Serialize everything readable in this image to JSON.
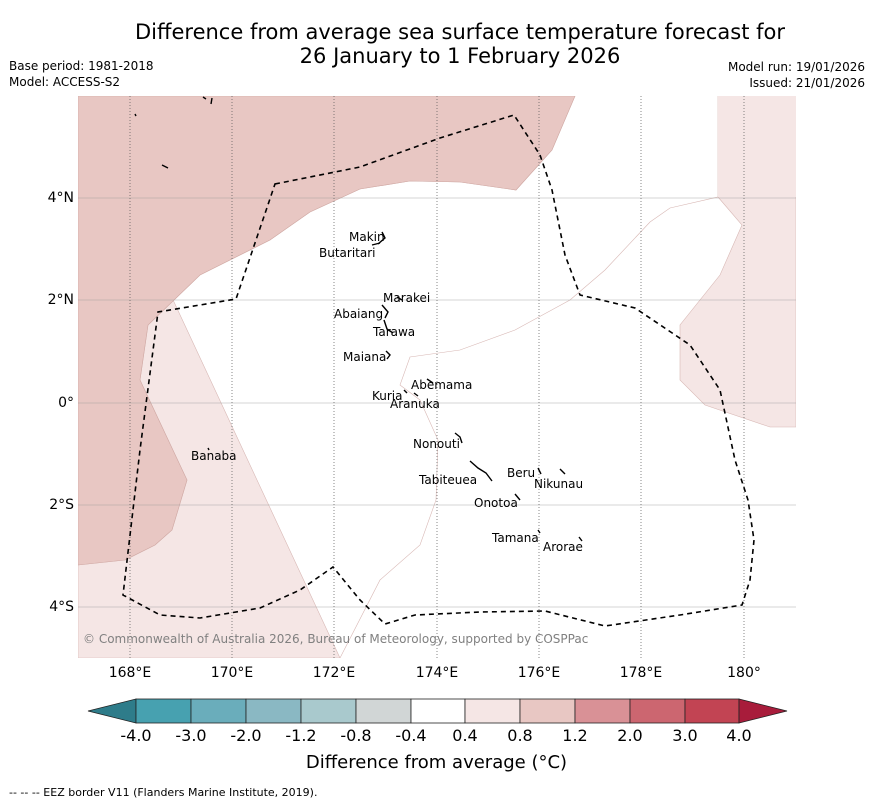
{
  "title": {
    "line1": "Difference from average sea surface temperature forecast for",
    "line2": "26 January to 1 February 2026"
  },
  "meta_left": {
    "base_period": "Base period: 1981-2018",
    "model": "Model: ACCESS-S2"
  },
  "meta_right": {
    "model_run": "Model run: 19/01/2026",
    "issued": "Issued: 21/01/2026"
  },
  "lat_labels": [
    "4°N",
    "2°N",
    "0°",
    "2°S",
    "4°S"
  ],
  "lon_labels": [
    "168°E",
    "170°E",
    "172°E",
    "174°E",
    "176°E",
    "178°E",
    "180°"
  ],
  "islands": {
    "makin": "Makin",
    "butaritari": "Butaritari",
    "marakei": "Marakei",
    "abaiang": "Abaiang",
    "tarawa": "Tarawa",
    "maiana": "Maiana",
    "abemama": "Abemama",
    "kuria": "Kuria",
    "aranuka": "Aranuka",
    "banaba": "Banaba",
    "nonouti": "Nonouti",
    "tabiteuea": "Tabiteuea",
    "beru": "Beru",
    "nikunau": "Nikunau",
    "onotoa": "Onotoa",
    "tamana": "Tamana",
    "arorae": "Arorae"
  },
  "copyright": "© Commonwealth of Australia 2026, Bureau of Meteorology, supported by COSPPac",
  "colorbar": {
    "ticks": [
      "-4.0",
      "-3.0",
      "-2.0",
      "-1.2",
      "-0.8",
      "-0.4",
      "0.4",
      "0.8",
      "1.2",
      "2.0",
      "3.0",
      "4.0"
    ],
    "colors": [
      "#2e7c8a",
      "#47a1b0",
      "#6aadbb",
      "#8ab8c3",
      "#a9c9cd",
      "#d1d6d6",
      "#ffffff",
      "#f5e6e5",
      "#e8c7c3",
      "#d99196",
      "#cc6670",
      "#c24453",
      "#a81c3b"
    ],
    "label": "Difference from average (°C)"
  },
  "footer": "--  --  -- EEZ border V11 (Flanders Marine Institute, 2019)."
}
